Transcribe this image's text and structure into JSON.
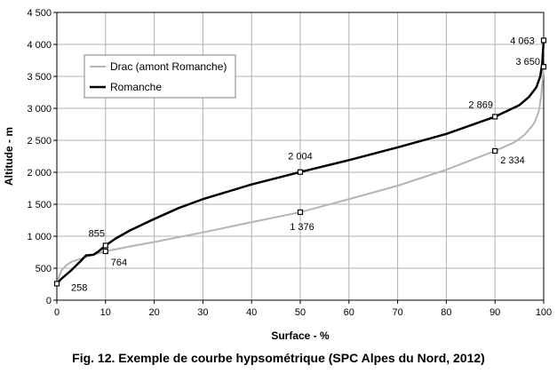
{
  "caption": "Fig. 12. Exemple de courbe hypsométrique (SPC Alpes du Nord, 2012)",
  "chart_data": {
    "type": "line",
    "title": "",
    "xlabel": "Surface - %",
    "ylabel": "Altitude - m",
    "xlim": [
      0,
      100
    ],
    "ylim": [
      0,
      4500
    ],
    "x_ticks": [
      0,
      10,
      20,
      30,
      40,
      50,
      60,
      70,
      80,
      90,
      100
    ],
    "y_ticks": [
      0,
      500,
      1000,
      1500,
      2000,
      2500,
      3000,
      3500,
      4000,
      4500
    ],
    "y_tick_labels": [
      "0",
      "500",
      "1 000",
      "1 500",
      "2 000",
      "2 500",
      "3 000",
      "3 500",
      "4 000",
      "4 500"
    ],
    "grid": true,
    "legend_position": "top-left",
    "series": [
      {
        "name": "Drac (amont Romanche)",
        "color": "#b4b4b4",
        "x": [
          0,
          0.5,
          1,
          2,
          3,
          5,
          7,
          10,
          15,
          20,
          30,
          40,
          50,
          60,
          70,
          80,
          90,
          94,
          96,
          98,
          99,
          99.5,
          100
        ],
        "y": [
          258,
          380,
          470,
          550,
          600,
          650,
          700,
          764,
          840,
          910,
          1060,
          1220,
          1376,
          1580,
          1790,
          2040,
          2334,
          2470,
          2580,
          2760,
          2950,
          3200,
          3650
        ],
        "markers": [
          {
            "x": 10,
            "y": 764,
            "label": "764"
          },
          {
            "x": 50,
            "y": 1376,
            "label": "1 376"
          },
          {
            "x": 90,
            "y": 2334,
            "label": "2 334"
          },
          {
            "x": 100,
            "y": 3650,
            "label": "3 650"
          }
        ]
      },
      {
        "name": "Romanche",
        "color": "#000000",
        "x": [
          0,
          1,
          3,
          5,
          6,
          7.5,
          8.5,
          10,
          12,
          15,
          20,
          25,
          30,
          40,
          50,
          60,
          70,
          80,
          90,
          95,
          97,
          98.5,
          99.3,
          99.7,
          100
        ],
        "y": [
          258,
          340,
          470,
          620,
          700,
          710,
          760,
          855,
          960,
          1090,
          1270,
          1440,
          1580,
          1810,
          2004,
          2190,
          2390,
          2600,
          2869,
          3050,
          3180,
          3330,
          3500,
          3700,
          4063
        ],
        "markers": [
          {
            "x": 0,
            "y": 258,
            "label": "258"
          },
          {
            "x": 10,
            "y": 855,
            "label": "855"
          },
          {
            "x": 50,
            "y": 2004,
            "label": "2 004"
          },
          {
            "x": 90,
            "y": 2869,
            "label": "2 869"
          },
          {
            "x": 100,
            "y": 4063,
            "label": "4 063"
          }
        ]
      }
    ]
  }
}
